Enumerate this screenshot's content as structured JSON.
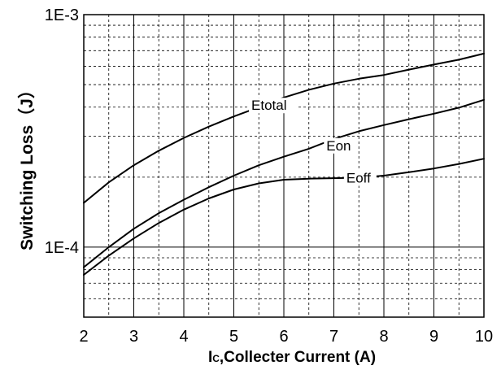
{
  "chart_data": {
    "type": "line",
    "xlabel_main": "I",
    "xlabel_sub": "C",
    "xlabel_rest": ",Collecter Current (A)",
    "ylabel": "Switching Loss（J）",
    "x_scale": "linear",
    "y_scale": "log",
    "xlim": [
      2,
      10
    ],
    "ylim": [
      5e-05,
      0.001
    ],
    "x_ticks": [
      2,
      3,
      4,
      5,
      6,
      7,
      8,
      9,
      10
    ],
    "x_tick_labels": [
      "2",
      "3",
      "4",
      "5",
      "6",
      "7",
      "8",
      "9",
      "10"
    ],
    "y_tick_labels": [
      {
        "value": 0.001,
        "label": "1E-3"
      },
      {
        "value": 0.0001,
        "label": "1E-4"
      }
    ],
    "grid": true,
    "series": [
      {
        "name": "Etotal",
        "color": "#000000",
        "x": [
          2,
          2.5,
          3,
          3.5,
          4,
          4.5,
          5,
          5.5,
          6,
          6.5,
          7,
          7.5,
          8,
          8.5,
          9,
          9.5,
          10
        ],
        "y": [
          0.000155,
          0.00019,
          0.000225,
          0.00026,
          0.000295,
          0.00033,
          0.000365,
          0.0004,
          0.00044,
          0.000475,
          0.000505,
          0.00053,
          0.00055,
          0.00058,
          0.00061,
          0.00064,
          0.00068
        ]
      },
      {
        "name": "Eon",
        "color": "#000000",
        "x": [
          2,
          2.5,
          3,
          3.5,
          4,
          4.5,
          5,
          5.5,
          6,
          6.5,
          7,
          7.5,
          8,
          8.5,
          9,
          9.5,
          10
        ],
        "y": [
          8.2e-05,
          0.0001,
          0.00012,
          0.00014,
          0.00016,
          0.000181,
          0.000203,
          0.000225,
          0.000245,
          0.000265,
          0.000292,
          0.000315,
          0.000335,
          0.000355,
          0.000375,
          0.000398,
          0.00043
        ]
      },
      {
        "name": "Eoff",
        "color": "#000000",
        "x": [
          2,
          2.5,
          3,
          3.5,
          4,
          4.5,
          5,
          5.5,
          6,
          6.5,
          7,
          7.5,
          8,
          8.5,
          9,
          9.5,
          10
        ],
        "y": [
          7.6e-05,
          9.2e-05,
          0.000109,
          0.000127,
          0.000145,
          0.000162,
          0.000177,
          0.000188,
          0.000195,
          0.000197,
          0.000198,
          0.000199,
          0.000203,
          0.00021,
          0.000218,
          0.000228,
          0.00024
        ]
      }
    ],
    "annotations": [
      {
        "text": "Etotal",
        "series": "Etotal"
      },
      {
        "text": "Eon",
        "series": "Eon"
      },
      {
        "text": "Eoff",
        "series": "Eoff"
      }
    ]
  }
}
